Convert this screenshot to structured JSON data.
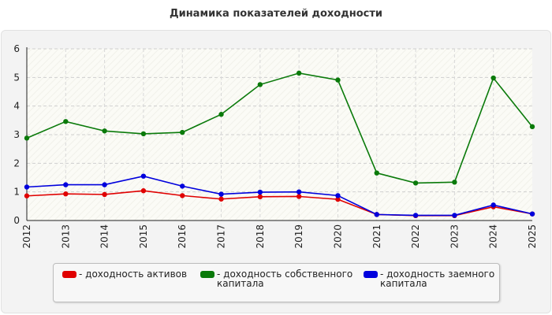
{
  "chart_data": {
    "type": "line",
    "title": "Динамика показателей доходности",
    "xlabel": "",
    "ylabel": "",
    "categories": [
      "2012",
      "2013",
      "2014",
      "2015",
      "2016",
      "2017",
      "2018",
      "2019",
      "2020",
      "2021",
      "2022",
      "2023",
      "2024",
      "2025"
    ],
    "ylim": [
      0,
      6
    ],
    "yticks": [
      "0",
      "1",
      "2",
      "3",
      "4",
      "5",
      "6"
    ],
    "grid": true,
    "legend_position": "bottom",
    "series": [
      {
        "name": "- доходность активов",
        "color": "#e00000",
        "values": [
          0.86,
          0.93,
          0.91,
          1.04,
          0.87,
          0.75,
          0.83,
          0.84,
          0.74,
          0.21,
          0.17,
          0.17,
          0.48,
          0.23
        ]
      },
      {
        "name": "- доходность собственного капитала",
        "color": "#0a7a0a",
        "values": [
          2.88,
          3.46,
          3.13,
          3.03,
          3.08,
          3.71,
          4.75,
          5.15,
          4.91,
          1.66,
          1.31,
          1.34,
          4.98,
          3.28
        ]
      },
      {
        "name": "- доходность заемного капитала",
        "color": "#0000dd",
        "values": [
          1.17,
          1.25,
          1.25,
          1.55,
          1.2,
          0.92,
          0.99,
          1.0,
          0.87,
          0.21,
          0.18,
          0.18,
          0.54,
          0.23
        ]
      }
    ]
  },
  "legend": {
    "items": [
      {
        "label": "- доходность активов"
      },
      {
        "label": "- доходность собственного\nкапитала"
      },
      {
        "label": "- доходность заемного\nкапитала"
      }
    ]
  }
}
